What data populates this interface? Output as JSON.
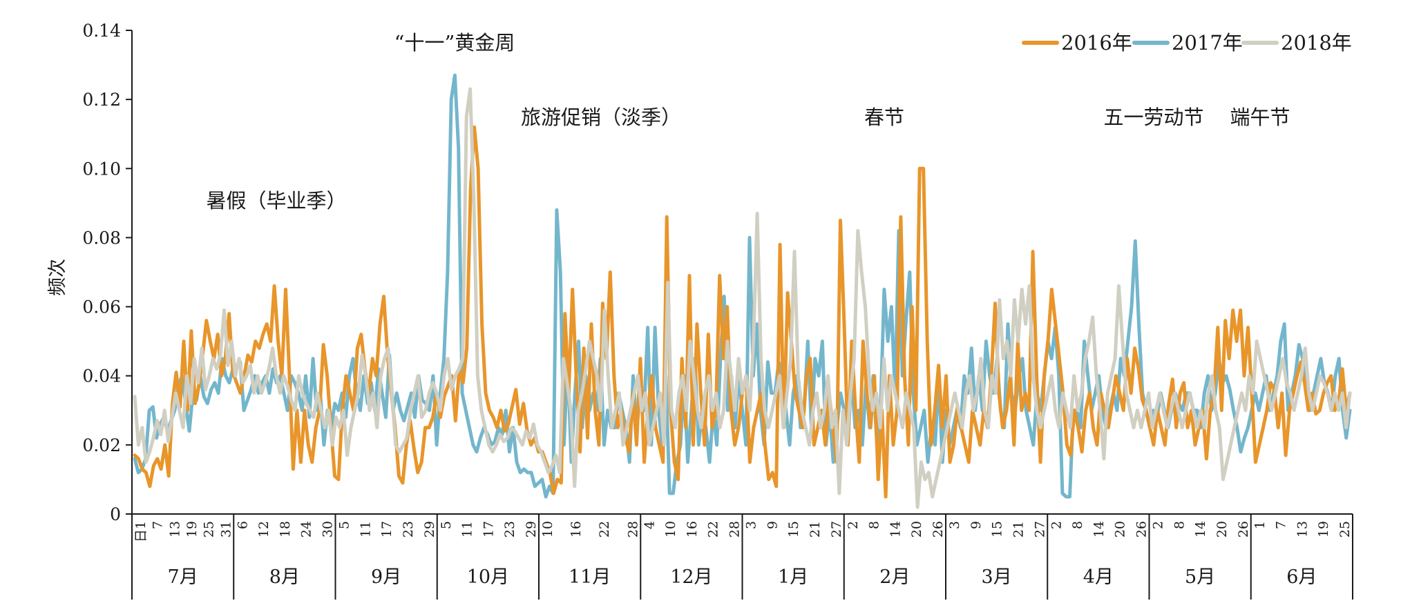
{
  "chart_data": {
    "type": "line",
    "ylabel": "频次",
    "ylim": [
      0,
      0.14
    ],
    "yticks": [
      "0",
      "0.02",
      "0.04",
      "0.06",
      "0.08",
      "0.10",
      "0.12",
      "0.14"
    ],
    "grid": false,
    "legend_position": "top-right",
    "colors": {
      "2016年": "#e8952a",
      "2017年": "#73b6cc",
      "2018年": "#d0cfc2"
    },
    "x_start": "7月1日",
    "x_end": "6月30日",
    "months": [
      {
        "label": "7月",
        "days": [
          "日1",
          "7",
          "13",
          "19",
          "25",
          "31"
        ]
      },
      {
        "label": "8月",
        "days": [
          "6",
          "12",
          "18",
          "24",
          "30"
        ]
      },
      {
        "label": "9月",
        "days": [
          "5",
          "11",
          "17",
          "23",
          "29"
        ]
      },
      {
        "label": "10月",
        "days": [
          "5",
          "11",
          "17",
          "23",
          "29"
        ]
      },
      {
        "label": "11月",
        "days": [
          "10",
          "16",
          "22",
          "28"
        ]
      },
      {
        "label": "12月",
        "days": [
          "4",
          "10",
          "16",
          "22",
          "28"
        ]
      },
      {
        "label": "1月",
        "days": [
          "3",
          "9",
          "15",
          "21",
          "27"
        ]
      },
      {
        "label": "2月",
        "days": [
          "2",
          "8",
          "14",
          "20",
          "26"
        ]
      },
      {
        "label": "3月",
        "days": [
          "3",
          "9",
          "15",
          "21",
          "27"
        ]
      },
      {
        "label": "4月",
        "days": [
          "2",
          "8",
          "14",
          "20",
          "26"
        ]
      },
      {
        "label": "5月",
        "days": [
          "2",
          "8",
          "14",
          "20",
          "26"
        ]
      },
      {
        "label": "6月",
        "days": [
          "1",
          "7",
          "13",
          "19",
          "25"
        ]
      }
    ],
    "annotations": [
      {
        "text": "暑假（毕业季）",
        "month": "7月-8月"
      },
      {
        "text": "“十一”黄金周",
        "month": "10月"
      },
      {
        "text": "旅游促销（淡季）",
        "month": "11月"
      },
      {
        "text": "春节",
        "month": "2月"
      },
      {
        "text": "五一劳动节",
        "month": "4月-5月"
      },
      {
        "text": "端午节",
        "month": "6月"
      }
    ],
    "series": [
      {
        "name": "2016年",
        "values": [
          0.017,
          0.016,
          0.013,
          0.012,
          0.008,
          0.014,
          0.016,
          0.013,
          0.02,
          0.011,
          0.032,
          0.041,
          0.031,
          0.05,
          0.03,
          0.053,
          0.032,
          0.037,
          0.046,
          0.056,
          0.05,
          0.045,
          0.052,
          0.04,
          0.045,
          0.058,
          0.041,
          0.038,
          0.035,
          0.04,
          0.046,
          0.044,
          0.05,
          0.048,
          0.052,
          0.055,
          0.05,
          0.066,
          0.05,
          0.04,
          0.065,
          0.04,
          0.013,
          0.03,
          0.015,
          0.03,
          0.02,
          0.015,
          0.025,
          0.03,
          0.049,
          0.04,
          0.025,
          0.011,
          0.01,
          0.03,
          0.04,
          0.035,
          0.03,
          0.048,
          0.052,
          0.042,
          0.035,
          0.045,
          0.04,
          0.055,
          0.063,
          0.046,
          0.035,
          0.025,
          0.011,
          0.009,
          0.02,
          0.027,
          0.019,
          0.012,
          0.015,
          0.025,
          0.025,
          0.028,
          0.035,
          0.028,
          0.034,
          0.037,
          0.04,
          0.027,
          0.042,
          0.038,
          0.048,
          0.094,
          0.112,
          0.1,
          0.055,
          0.035,
          0.03,
          0.028,
          0.025,
          0.03,
          0.024,
          0.026,
          0.031,
          0.036,
          0.026,
          0.032,
          0.024,
          0.02,
          0.022,
          0.018,
          0.018,
          0.015,
          0.012,
          0.006,
          0.01,
          0.009,
          0.058,
          0.035,
          0.065,
          0.04,
          0.018,
          0.048,
          0.022,
          0.055,
          0.03,
          0.02,
          0.061,
          0.045,
          0.07,
          0.04,
          0.025,
          0.03,
          0.022,
          0.018,
          0.035,
          0.02,
          0.045,
          0.015,
          0.03,
          0.04,
          0.025,
          0.02,
          0.015,
          0.086,
          0.03,
          0.015,
          0.01,
          0.045,
          0.025,
          0.069,
          0.02,
          0.055,
          0.035,
          0.02,
          0.052,
          0.025,
          0.03,
          0.069,
          0.045,
          0.06,
          0.03,
          0.02,
          0.025,
          0.035,
          0.04,
          0.015,
          0.025,
          0.03,
          0.035,
          0.02,
          0.01,
          0.012,
          0.008,
          0.078,
          0.025,
          0.064,
          0.05,
          0.035,
          0.03,
          0.025,
          0.04,
          0.045,
          0.02,
          0.025,
          0.03,
          0.02,
          0.035,
          0.025,
          0.015,
          0.085,
          0.055,
          0.02,
          0.05,
          0.03,
          0.015,
          0.05,
          0.035,
          0.025,
          0.04,
          0.01,
          0.03,
          0.005,
          0.04,
          0.02,
          0.03,
          0.086,
          0.04,
          0.02,
          0.06,
          0.03,
          0.1,
          0.1,
          0.05,
          0.02,
          0.03,
          0.043,
          0.025,
          0.04,
          0.015,
          0.02,
          0.031,
          0.025,
          0.02,
          0.015,
          0.03,
          0.025,
          0.02,
          0.03,
          0.025,
          0.04,
          0.061,
          0.035,
          0.025,
          0.03,
          0.04,
          0.02,
          0.05,
          0.03,
          0.035,
          0.03,
          0.076,
          0.04,
          0.015,
          0.04,
          0.05,
          0.065,
          0.055,
          0.045,
          0.035,
          0.02,
          0.017,
          0.03,
          0.025,
          0.018,
          0.03,
          0.035,
          0.025,
          0.02,
          0.035,
          0.03,
          0.025,
          0.032,
          0.04,
          0.035,
          0.03,
          0.045,
          0.035,
          0.048,
          0.042,
          0.033,
          0.03,
          0.025,
          0.02,
          0.03,
          0.025,
          0.02,
          0.032,
          0.039,
          0.025,
          0.035,
          0.038,
          0.025,
          0.03,
          0.02,
          0.025,
          0.03,
          0.016,
          0.03,
          0.035,
          0.054,
          0.03,
          0.056,
          0.045,
          0.059,
          0.05,
          0.059,
          0.04,
          0.054,
          0.035,
          0.015,
          0.02,
          0.025,
          0.03,
          0.038,
          0.036,
          0.025,
          0.035,
          0.017,
          0.03,
          0.035,
          0.04,
          0.044,
          0.038,
          0.03,
          0.035,
          0.029,
          0.03,
          0.035,
          0.038,
          0.04,
          0.03,
          0.032,
          0.042,
          0.03,
          0.035
        ]
      },
      {
        "name": "2017年",
        "values": [
          0.016,
          0.012,
          0.013,
          0.016,
          0.03,
          0.031,
          0.022,
          0.026,
          0.028,
          0.024,
          0.027,
          0.03,
          0.037,
          0.04,
          0.032,
          0.024,
          0.035,
          0.033,
          0.04,
          0.034,
          0.032,
          0.036,
          0.038,
          0.035,
          0.045,
          0.04,
          0.038,
          0.042,
          0.043,
          0.044,
          0.03,
          0.033,
          0.036,
          0.04,
          0.035,
          0.038,
          0.04,
          0.035,
          0.042,
          0.038,
          0.04,
          0.035,
          0.03,
          0.04,
          0.038,
          0.035,
          0.03,
          0.04,
          0.028,
          0.045,
          0.03,
          0.035,
          0.02,
          0.03,
          0.025,
          0.032,
          0.03,
          0.035,
          0.028,
          0.04,
          0.045,
          0.035,
          0.03,
          0.04,
          0.032,
          0.038,
          0.03,
          0.042,
          0.035,
          0.028,
          0.046,
          0.03,
          0.035,
          0.03,
          0.027,
          0.031,
          0.035,
          0.028,
          0.04,
          0.033,
          0.032,
          0.03,
          0.04,
          0.02,
          0.035,
          0.045,
          0.07,
          0.12,
          0.127,
          0.106,
          0.035,
          0.03,
          0.025,
          0.02,
          0.018,
          0.022,
          0.025,
          0.023,
          0.02,
          0.021,
          0.025,
          0.023,
          0.03,
          0.018,
          0.025,
          0.015,
          0.012,
          0.013,
          0.012,
          0.012,
          0.008,
          0.009,
          0.01,
          0.005,
          0.008,
          0.006,
          0.088,
          0.07,
          0.02,
          0.045,
          0.015,
          0.035,
          0.05,
          0.025,
          0.04,
          0.03,
          0.035,
          0.03,
          0.045,
          0.02,
          0.03,
          0.025,
          0.025,
          0.035,
          0.03,
          0.025,
          0.015,
          0.04,
          0.025,
          0.035,
          0.03,
          0.054,
          0.02,
          0.054,
          0.03,
          0.02,
          0.04,
          0.006,
          0.006,
          0.015,
          0.02,
          0.04,
          0.015,
          0.03,
          0.045,
          0.02,
          0.03,
          0.025,
          0.015,
          0.03,
          0.02,
          0.045,
          0.063,
          0.03,
          0.04,
          0.025,
          0.04,
          0.03,
          0.02,
          0.08,
          0.04,
          0.055,
          0.03,
          0.02,
          0.044,
          0.035,
          0.035,
          0.044,
          0.04,
          0.03,
          0.02,
          0.035,
          0.04,
          0.025,
          0.03,
          0.05,
          0.025,
          0.045,
          0.04,
          0.05,
          0.02,
          0.03,
          0.015,
          0.025,
          0.035,
          0.03,
          0.02,
          0.04,
          0.025,
          0.03,
          0.02,
          0.038,
          0.025,
          0.04,
          0.02,
          0.03,
          0.065,
          0.05,
          0.06,
          0.035,
          0.082,
          0.04,
          0.056,
          0.07,
          0.035,
          0.02,
          0.025,
          0.03,
          0.015,
          0.025,
          0.02,
          0.04,
          0.015,
          0.03,
          0.02,
          0.025,
          0.03,
          0.025,
          0.04,
          0.035,
          0.048,
          0.03,
          0.04,
          0.03,
          0.05,
          0.04,
          0.035,
          0.045,
          0.03,
          0.025,
          0.055,
          0.035,
          0.03,
          0.04,
          0.045,
          0.03,
          0.025,
          0.02,
          0.035,
          0.03,
          0.04,
          0.05,
          0.045,
          0.054,
          0.04,
          0.006,
          0.005,
          0.005,
          0.03,
          0.03,
          0.025,
          0.05,
          0.04,
          0.03,
          0.035,
          0.04,
          0.03,
          0.025,
          0.03,
          0.035,
          0.03,
          0.045,
          0.04,
          0.05,
          0.06,
          0.079,
          0.055,
          0.035,
          0.03,
          0.025,
          0.03,
          0.028,
          0.035,
          0.03,
          0.025,
          0.03,
          0.035,
          0.032,
          0.03,
          0.035,
          0.035,
          0.03,
          0.03,
          0.025,
          0.035,
          0.04,
          0.03,
          0.035,
          0.045,
          0.038,
          0.04,
          0.036,
          0.03,
          0.025,
          0.018,
          0.022,
          0.025,
          0.03,
          0.035,
          0.03,
          0.035,
          0.04,
          0.03,
          0.035,
          0.04,
          0.05,
          0.055,
          0.03,
          0.035,
          0.04,
          0.049,
          0.045,
          0.04,
          0.03,
          0.035,
          0.04,
          0.045,
          0.038,
          0.035,
          0.03,
          0.04,
          0.045,
          0.03,
          0.022,
          0.03
        ]
      },
      {
        "name": "2018年",
        "values": [
          0.034,
          0.02,
          0.025,
          0.015,
          0.018,
          0.022,
          0.027,
          0.023,
          0.03,
          0.021,
          0.028,
          0.035,
          0.03,
          0.025,
          0.04,
          0.032,
          0.045,
          0.038,
          0.048,
          0.036,
          0.04,
          0.045,
          0.042,
          0.046,
          0.059,
          0.043,
          0.05,
          0.04,
          0.045,
          0.038,
          0.04,
          0.043,
          0.035,
          0.04,
          0.035,
          0.038,
          0.042,
          0.048,
          0.04,
          0.035,
          0.04,
          0.037,
          0.033,
          0.03,
          0.04,
          0.035,
          0.032,
          0.03,
          0.028,
          0.035,
          0.03,
          0.025,
          0.03,
          0.02,
          0.028,
          0.025,
          0.03,
          0.017,
          0.025,
          0.03,
          0.035,
          0.046,
          0.04,
          0.03,
          0.035,
          0.025,
          0.04,
          0.045,
          0.048,
          0.035,
          0.02,
          0.018,
          0.02,
          0.022,
          0.03,
          0.035,
          0.04,
          0.028,
          0.03,
          0.035,
          0.038,
          0.035,
          0.03,
          0.04,
          0.045,
          0.036,
          0.04,
          0.042,
          0.045,
          0.115,
          0.123,
          0.09,
          0.04,
          0.03,
          0.025,
          0.02,
          0.018,
          0.02,
          0.023,
          0.021,
          0.022,
          0.025,
          0.024,
          0.022,
          0.02,
          0.024,
          0.022,
          0.026,
          0.02,
          0.018,
          0.015,
          0.012,
          0.014,
          0.017,
          0.012,
          0.045,
          0.038,
          0.03,
          0.008,
          0.03,
          0.035,
          0.042,
          0.05,
          0.045,
          0.04,
          0.03,
          0.059,
          0.04,
          0.025,
          0.03,
          0.035,
          0.02,
          0.025,
          0.03,
          0.035,
          0.04,
          0.03,
          0.035,
          0.02,
          0.025,
          0.03,
          0.035,
          0.02,
          0.067,
          0.03,
          0.025,
          0.035,
          0.04,
          0.03,
          0.05,
          0.04,
          0.03,
          0.025,
          0.035,
          0.04,
          0.03,
          0.035,
          0.025,
          0.03,
          0.05,
          0.04,
          0.03,
          0.045,
          0.035,
          0.04,
          0.03,
          0.05,
          0.087,
          0.045,
          0.03,
          0.025,
          0.03,
          0.035,
          0.04,
          0.025,
          0.035,
          0.045,
          0.076,
          0.04,
          0.03,
          0.025,
          0.02,
          0.03,
          0.035,
          0.025,
          0.03,
          0.04,
          0.025,
          0.03,
          0.006,
          0.03,
          0.02,
          0.035,
          0.045,
          0.082,
          0.07,
          0.06,
          0.04,
          0.03,
          0.035,
          0.025,
          0.045,
          0.03,
          0.04,
          0.035,
          0.03,
          0.025,
          0.035,
          0.03,
          0.025,
          0.002,
          0.015,
          0.01,
          0.012,
          0.005,
          0.01,
          0.015,
          0.02,
          0.025,
          0.03,
          0.035,
          0.03,
          0.025,
          0.035,
          0.04,
          0.03,
          0.035,
          0.045,
          0.03,
          0.025,
          0.04,
          0.035,
          0.062,
          0.045,
          0.05,
          0.04,
          0.062,
          0.05,
          0.065,
          0.055,
          0.066,
          0.04,
          0.03,
          0.025,
          0.03,
          0.035,
          0.04,
          0.03,
          0.025,
          0.035,
          0.03,
          0.025,
          0.04,
          0.03,
          0.035,
          0.045,
          0.05,
          0.057,
          0.04,
          0.03,
          0.016,
          0.035,
          0.04,
          0.045,
          0.066,
          0.05,
          0.035,
          0.03,
          0.025,
          0.03,
          0.025,
          0.03,
          0.035,
          0.025,
          0.03,
          0.035,
          0.03,
          0.025,
          0.03,
          0.035,
          0.03,
          0.025,
          0.03,
          0.035,
          0.03,
          0.025,
          0.03,
          0.025,
          0.035,
          0.04,
          0.03,
          0.025,
          0.01,
          0.015,
          0.02,
          0.025,
          0.03,
          0.035,
          0.03,
          0.04,
          0.035,
          0.05,
          0.045,
          0.04,
          0.035,
          0.03,
          0.035,
          0.04,
          0.045,
          0.038,
          0.035,
          0.03,
          0.035,
          0.04,
          0.048,
          0.035,
          0.03,
          0.035,
          0.04,
          0.038,
          0.035,
          0.03,
          0.035,
          0.03,
          0.035,
          0.025,
          0.035
        ]
      }
    ]
  }
}
